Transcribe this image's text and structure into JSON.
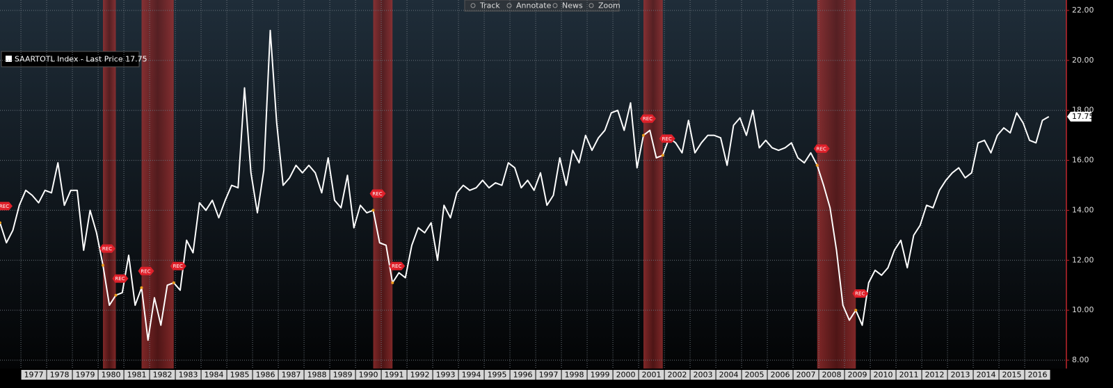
{
  "chart_data": {
    "type": "line",
    "toolbar": [
      "Track",
      "Annotate",
      "News",
      "Zoom"
    ],
    "categories": [
      null,
      null,
      null,
      null,
      null,
      "1977",
      null,
      null,
      null,
      "1978",
      null,
      null,
      null,
      "1979",
      null,
      null,
      null,
      "1980",
      null,
      null,
      null,
      "1981",
      null,
      null,
      null,
      "1982",
      null,
      null,
      null,
      "1983",
      null,
      null,
      null,
      "1984",
      null,
      null,
      null,
      "1985",
      null,
      null,
      null,
      "1986",
      null,
      null,
      null,
      "1987",
      null,
      null,
      null,
      "1988",
      null,
      null,
      null,
      "1989",
      null,
      null,
      null,
      "1990",
      null,
      null,
      null,
      "1991",
      null,
      null,
      null,
      "1992",
      null,
      null,
      null,
      "1993",
      null,
      null,
      null,
      "1994",
      null,
      null,
      null,
      "1995",
      null,
      null,
      null,
      "1996",
      null,
      null,
      null,
      "1997",
      null,
      null,
      null,
      "1998",
      null,
      null,
      null,
      "1999",
      null,
      null,
      null,
      "2000",
      null,
      null,
      null,
      "2001",
      null,
      null,
      null,
      "2002",
      null,
      null,
      null,
      "2003",
      null,
      null,
      null,
      "2004",
      null,
      null,
      null,
      "2005",
      null,
      null,
      null,
      "2006",
      null,
      null,
      null,
      "2007",
      null,
      null,
      null,
      "2008",
      null,
      null,
      null,
      "2009",
      null,
      null,
      null,
      "2010",
      null,
      null,
      null,
      "2011",
      null,
      null,
      null,
      "2012",
      null,
      null,
      null,
      "2013",
      null,
      null,
      null,
      "2014",
      null,
      null,
      null,
      "2015",
      null,
      null,
      null,
      "2016",
      null,
      null
    ],
    "series": [
      {
        "name": "SAARTOTL Index - Last Price 17.75",
        "color": "#ffffff",
        "values": [
          13.5,
          12.7,
          13.2,
          14.2,
          14.8,
          14.6,
          14.3,
          14.8,
          14.7,
          15.9,
          14.2,
          14.8,
          14.8,
          12.4,
          14.0,
          13.1,
          11.8,
          10.2,
          10.6,
          10.7,
          12.2,
          10.2,
          10.9,
          8.8,
          10.5,
          9.4,
          11.0,
          11.1,
          10.8,
          12.8,
          12.3,
          14.3,
          14.0,
          14.4,
          13.7,
          14.4,
          15.0,
          14.9,
          18.9,
          15.5,
          13.9,
          15.6,
          21.2,
          17.5,
          15.0,
          15.3,
          15.8,
          15.5,
          15.8,
          15.5,
          14.7,
          16.1,
          14.4,
          14.1,
          15.4,
          13.3,
          14.2,
          13.9,
          14.0,
          12.7,
          12.6,
          11.1,
          11.5,
          11.3,
          12.6,
          13.3,
          13.1,
          13.5,
          12.0,
          14.2,
          13.7,
          14.7,
          15.0,
          14.8,
          14.9,
          15.2,
          14.9,
          15.1,
          15.0,
          15.9,
          15.7,
          14.9,
          15.2,
          14.8,
          15.5,
          14.2,
          14.6,
          16.1,
          15.0,
          16.4,
          15.9,
          17.0,
          16.4,
          16.9,
          17.2,
          17.9,
          18.0,
          17.2,
          18.3,
          15.7,
          17.0,
          17.2,
          16.1,
          16.2,
          16.9,
          16.7,
          16.3,
          17.6,
          16.3,
          16.7,
          17.0,
          17.0,
          16.9,
          15.8,
          17.4,
          17.7,
          17.0,
          18.0,
          16.5,
          16.8,
          16.5,
          16.4,
          16.5,
          16.7,
          16.1,
          15.9,
          16.3,
          15.8,
          15.0,
          14.1,
          12.4,
          10.2,
          9.6,
          10.0,
          9.4,
          11.1,
          11.6,
          11.4,
          11.7,
          12.4,
          12.8,
          11.7,
          13.0,
          13.4,
          14.2,
          14.1,
          14.8,
          15.2,
          15.5,
          15.7,
          15.3,
          15.5,
          16.7,
          16.8,
          16.3,
          17.0,
          17.3,
          17.1,
          17.9,
          17.5,
          16.8,
          16.7,
          17.6,
          17.75
        ]
      }
    ],
    "recessions": [
      {
        "start": 16,
        "end": 18
      },
      {
        "start": 22,
        "end": 27
      },
      {
        "start": 58,
        "end": 61
      },
      {
        "start": 100,
        "end": 103
      },
      {
        "start": 127,
        "end": 133
      }
    ],
    "flags": [
      {
        "index": 0,
        "label": "REC"
      },
      {
        "index": 16,
        "label": "REC"
      },
      {
        "index": 18,
        "label": "REC"
      },
      {
        "index": 22,
        "label": "REC"
      },
      {
        "index": 27,
        "label": "REC"
      },
      {
        "index": 58,
        "label": "REC"
      },
      {
        "index": 61,
        "label": "REC"
      },
      {
        "index": 100,
        "label": "REC"
      },
      {
        "index": 103,
        "label": "REC"
      },
      {
        "index": 127,
        "label": "REC"
      },
      {
        "index": 133,
        "label": "REC"
      }
    ],
    "ylim": [
      8,
      22
    ],
    "yticks": [
      {
        "value": 8,
        "label": "8.00"
      },
      {
        "value": 10,
        "label": "10.00"
      },
      {
        "value": 12,
        "label": "12.00"
      },
      {
        "value": 14,
        "label": "14.00"
      },
      {
        "value": 16,
        "label": "16.00"
      },
      {
        "value": 18,
        "label": "18.00"
      },
      {
        "value": 20,
        "label": "20.00"
      },
      {
        "value": 22,
        "label": "22.00"
      }
    ],
    "grid": true
  }
}
